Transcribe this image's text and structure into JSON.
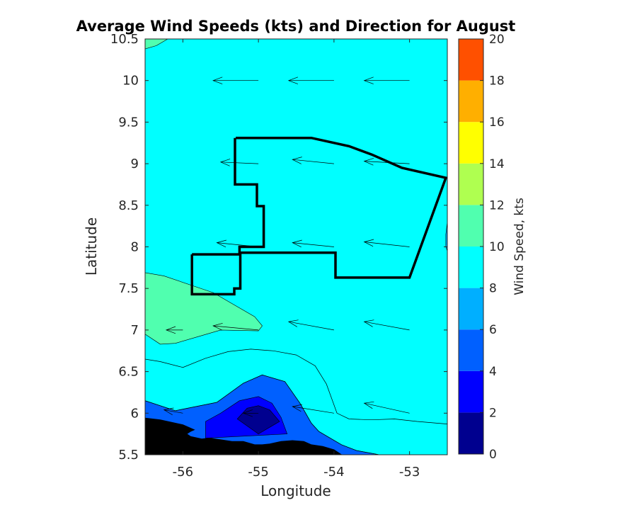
{
  "chart_data": {
    "type": "contour",
    "title": "Average Wind Speeds (kts) and Direction for August",
    "xlabel": "Longitude",
    "ylabel": "Latitude",
    "xlim": [
      -56.5,
      -52.5
    ],
    "ylim": [
      5.5,
      10.5
    ],
    "xticks": [
      -56,
      -55,
      -54,
      -53
    ],
    "xtick_labels": [
      "-56",
      "-55",
      "-54",
      "-53"
    ],
    "yticks": [
      5.5,
      6,
      6.5,
      7,
      7.5,
      8,
      8.5,
      9,
      9.5,
      10,
      10.5
    ],
    "ytick_labels": [
      "5.5",
      "6",
      "6.5",
      "7",
      "7.5",
      "8",
      "8.5",
      "9",
      "9.5",
      "10",
      "10.5"
    ],
    "colorbar": {
      "label": "Wind Speed, kts",
      "levels": [
        0,
        2,
        4,
        6,
        8,
        10,
        12,
        14,
        16,
        18,
        20
      ],
      "tick_labels": [
        "0",
        "2",
        "4",
        "6",
        "8",
        "10",
        "12",
        "14",
        "16",
        "18",
        "20"
      ],
      "colors": [
        "#00008f",
        "#0000ff",
        "#0060ff",
        "#00afff",
        "#00ffff",
        "#50ffaf",
        "#afff50",
        "#ffff00",
        "#ffaf00",
        "#ff5000"
      ]
    },
    "contour_regions": [
      {
        "level_range": [
          4,
          6
        ],
        "color": "#0060ff",
        "polygon": [
          [
            -56.5,
            6.15
          ],
          [
            -56.1,
            6.03
          ],
          [
            -55.55,
            6.13
          ],
          [
            -55.2,
            6.36
          ],
          [
            -54.95,
            6.46
          ],
          [
            -54.65,
            6.38
          ],
          [
            -54.45,
            6.12
          ],
          [
            -54.3,
            5.88
          ],
          [
            -54.2,
            5.78
          ],
          [
            -53.9,
            5.62
          ],
          [
            -53.7,
            5.55
          ],
          [
            -53.4,
            5.5
          ],
          [
            -56.5,
            5.5
          ]
        ]
      },
      {
        "level_range": [
          2,
          4
        ],
        "color": "#0000ff",
        "polygon": [
          [
            -55.7,
            5.9
          ],
          [
            -55.5,
            6.0
          ],
          [
            -55.25,
            6.15
          ],
          [
            -55.0,
            6.2
          ],
          [
            -54.82,
            6.12
          ],
          [
            -54.7,
            5.95
          ],
          [
            -54.62,
            5.75
          ],
          [
            -55.7,
            5.7
          ]
        ]
      },
      {
        "level_range": [
          0,
          2
        ],
        "color": "#00008f",
        "polygon": [
          [
            -55.28,
            5.93
          ],
          [
            -55.15,
            6.06
          ],
          [
            -55.0,
            6.09
          ],
          [
            -54.85,
            6.04
          ],
          [
            -54.72,
            5.9
          ],
          [
            -55.0,
            5.75
          ]
        ]
      },
      {
        "level_range": [
          10,
          12
        ],
        "color": "#50ffaf",
        "polygon": [
          [
            -56.5,
            7.69
          ],
          [
            -56.25,
            7.65
          ],
          [
            -55.6,
            7.45
          ],
          [
            -55.05,
            7.16
          ],
          [
            -54.95,
            7.05
          ],
          [
            -55.0,
            6.99
          ],
          [
            -55.5,
            7.0
          ],
          [
            -55.8,
            6.92
          ],
          [
            -56.1,
            6.84
          ],
          [
            -56.3,
            6.83
          ],
          [
            -56.5,
            6.95
          ]
        ]
      },
      {
        "level_range": [
          10,
          12
        ],
        "color": "#50ffaf",
        "polygon": [
          [
            -56.5,
            10.5
          ],
          [
            -56.2,
            10.5
          ],
          [
            -56.35,
            10.42
          ],
          [
            -56.5,
            10.38
          ]
        ]
      },
      {
        "level_range": [
          6,
          8
        ],
        "color": "#00afff",
        "polygon": [
          [
            -52.5,
            8.3
          ],
          [
            -52.52,
            8.15
          ],
          [
            -52.52,
            8.0
          ],
          [
            -52.5,
            7.95
          ]
        ]
      }
    ],
    "contour_lines": [
      {
        "level": 8,
        "points": [
          [
            -56.5,
            6.65
          ],
          [
            -56.3,
            6.62
          ],
          [
            -56.0,
            6.55
          ],
          [
            -55.7,
            6.66
          ],
          [
            -55.4,
            6.74
          ],
          [
            -55.1,
            6.77
          ],
          [
            -54.8,
            6.75
          ],
          [
            -54.5,
            6.7
          ],
          [
            -54.25,
            6.57
          ],
          [
            -54.1,
            6.35
          ],
          [
            -53.96,
            6.0
          ],
          [
            -53.8,
            5.93
          ],
          [
            -53.5,
            5.92
          ],
          [
            -53.2,
            5.93
          ],
          [
            -52.9,
            5.9
          ],
          [
            -52.5,
            5.87
          ]
        ]
      },
      {
        "level": 6,
        "points": [
          [
            -56.5,
            6.15
          ],
          [
            -56.1,
            6.03
          ],
          [
            -55.55,
            6.13
          ],
          [
            -55.2,
            6.36
          ],
          [
            -54.95,
            6.46
          ],
          [
            -54.65,
            6.38
          ],
          [
            -54.45,
            6.12
          ],
          [
            -54.3,
            5.88
          ],
          [
            -54.2,
            5.78
          ],
          [
            -53.9,
            5.62
          ],
          [
            -53.7,
            5.55
          ],
          [
            -53.4,
            5.5
          ]
        ]
      }
    ],
    "land_polygon": [
      [
        -56.5,
        5.94
      ],
      [
        -56.3,
        5.92
      ],
      [
        -56.0,
        5.86
      ],
      [
        -55.85,
        5.8
      ],
      [
        -55.9,
        5.78
      ],
      [
        -55.95,
        5.75
      ],
      [
        -55.9,
        5.72
      ],
      [
        -55.75,
        5.69
      ],
      [
        -55.65,
        5.7
      ],
      [
        -55.5,
        5.68
      ],
      [
        -55.35,
        5.66
      ],
      [
        -55.2,
        5.66
      ],
      [
        -55.05,
        5.62
      ],
      [
        -54.95,
        5.62
      ],
      [
        -54.85,
        5.63
      ],
      [
        -54.7,
        5.66
      ],
      [
        -54.55,
        5.67
      ],
      [
        -54.4,
        5.66
      ],
      [
        -54.3,
        5.62
      ],
      [
        -54.15,
        5.6
      ],
      [
        -54.0,
        5.56
      ],
      [
        -53.9,
        5.5
      ],
      [
        -56.5,
        5.5
      ]
    ],
    "boundary_path": [
      [
        -55.3,
        9.31
      ],
      [
        -54.3,
        9.31
      ],
      [
        -53.8,
        9.21
      ],
      [
        -53.5,
        9.11
      ],
      [
        -53.1,
        8.95
      ],
      [
        -52.52,
        8.83
      ],
      [
        -53.0,
        7.63
      ],
      [
        -53.98,
        7.63
      ],
      [
        -53.98,
        7.93
      ],
      [
        -55.25,
        7.93
      ],
      [
        -55.25,
        8.0
      ],
      [
        -54.93,
        8.0
      ],
      [
        -54.93,
        8.49
      ],
      [
        -55.02,
        8.49
      ],
      [
        -55.02,
        8.75
      ],
      [
        -55.31,
        8.75
      ],
      [
        -55.31,
        9.31
      ]
    ],
    "boundary_path_2": [
      [
        -55.88,
        7.91
      ],
      [
        -55.24,
        7.91
      ],
      [
        -55.24,
        7.5
      ],
      [
        -55.32,
        7.5
      ],
      [
        -55.32,
        7.43
      ],
      [
        -55.88,
        7.43
      ],
      [
        -55.88,
        7.91
      ]
    ],
    "arrows": [
      {
        "x": -56.0,
        "y": 10.0,
        "u": -0.0,
        "v": 0
      },
      {
        "x": -55.0,
        "y": 10.0,
        "u": -0.6,
        "v": 0
      },
      {
        "x": -54.0,
        "y": 10.0,
        "u": -0.6,
        "v": 0
      },
      {
        "x": -53.0,
        "y": 10.0,
        "u": -0.6,
        "v": 0
      },
      {
        "x": -56.0,
        "y": 9.0,
        "u": -0.0,
        "v": 0
      },
      {
        "x": -55.0,
        "y": 9.0,
        "u": -0.5,
        "v": 0.02
      },
      {
        "x": -54.0,
        "y": 9.0,
        "u": -0.55,
        "v": 0.05
      },
      {
        "x": -53.0,
        "y": 9.0,
        "u": -0.6,
        "v": 0.03
      },
      {
        "x": -56.0,
        "y": 8.0,
        "u": -0.0,
        "v": 0
      },
      {
        "x": -55.0,
        "y": 8.0,
        "u": -0.55,
        "v": 0.05
      },
      {
        "x": -54.0,
        "y": 8.0,
        "u": -0.55,
        "v": 0.05
      },
      {
        "x": -53.0,
        "y": 8.0,
        "u": -0.6,
        "v": 0.06
      },
      {
        "x": -56.0,
        "y": 7.0,
        "u": -0.22,
        "v": 0
      },
      {
        "x": -55.0,
        "y": 7.0,
        "u": -0.6,
        "v": 0.05
      },
      {
        "x": -54.0,
        "y": 7.0,
        "u": -0.6,
        "v": 0.1
      },
      {
        "x": -53.0,
        "y": 7.0,
        "u": -0.6,
        "v": 0.1
      },
      {
        "x": -56.0,
        "y": 6.0,
        "u": -0.25,
        "v": 0.04
      },
      {
        "x": -55.0,
        "y": 6.0,
        "u": -0.2,
        "v": 0
      },
      {
        "x": -54.0,
        "y": 6.0,
        "u": -0.55,
        "v": 0.08
      },
      {
        "x": -53.0,
        "y": 6.0,
        "u": -0.6,
        "v": 0.12
      }
    ],
    "grid": false,
    "legend": "none"
  }
}
